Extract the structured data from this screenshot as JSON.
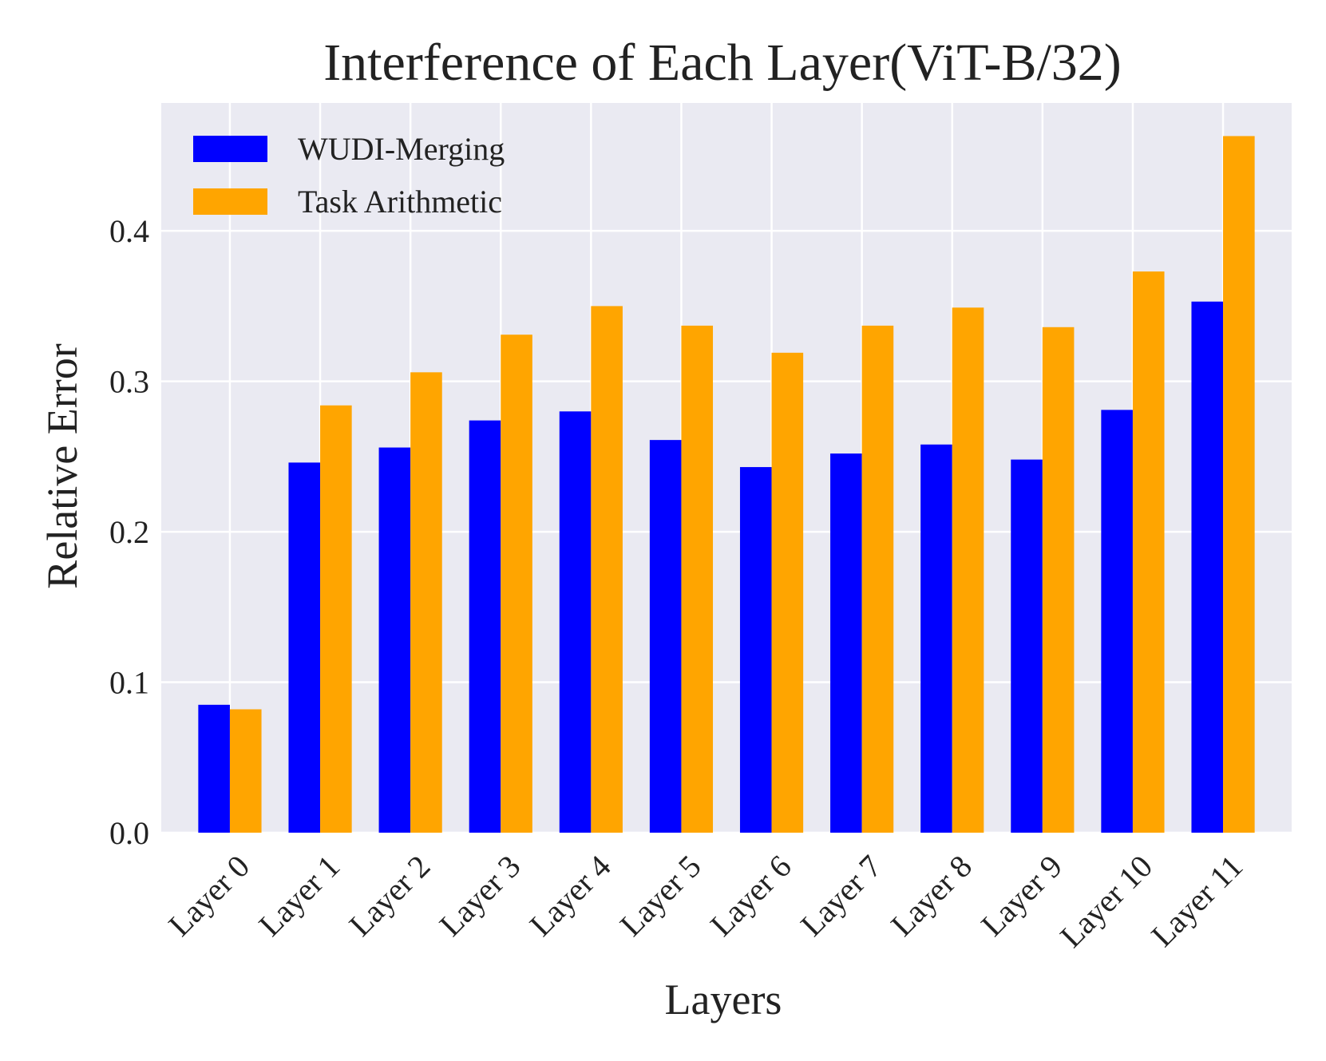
{
  "chart_data": {
    "type": "bar",
    "title": "Interference of Each Layer(ViT-B/32)",
    "xlabel": "Layers",
    "ylabel": "Relative Error",
    "categories": [
      "Layer 0",
      "Layer 1",
      "Layer 2",
      "Layer 3",
      "Layer 4",
      "Layer 5",
      "Layer 6",
      "Layer 7",
      "Layer 8",
      "Layer 9",
      "Layer 10",
      "Layer 11"
    ],
    "series": [
      {
        "name": "WUDI-Merging",
        "color": "#0000ff",
        "values": [
          0.085,
          0.246,
          0.256,
          0.274,
          0.28,
          0.261,
          0.243,
          0.252,
          0.258,
          0.248,
          0.281,
          0.353
        ]
      },
      {
        "name": "Task Arithmetic",
        "color": "#ffa500",
        "values": [
          0.082,
          0.284,
          0.306,
          0.331,
          0.35,
          0.337,
          0.319,
          0.337,
          0.349,
          0.336,
          0.373,
          0.463
        ]
      }
    ],
    "ylim": [
      0,
      0.485
    ],
    "yticks": [
      0.0,
      0.1,
      0.2,
      0.3,
      0.4
    ],
    "ytick_labels": [
      "0.0",
      "0.1",
      "0.2",
      "0.3",
      "0.4"
    ],
    "grid": true,
    "legend_position": "top-left",
    "background_color": "#eaeaf2",
    "grid_color": "#ffffff"
  }
}
